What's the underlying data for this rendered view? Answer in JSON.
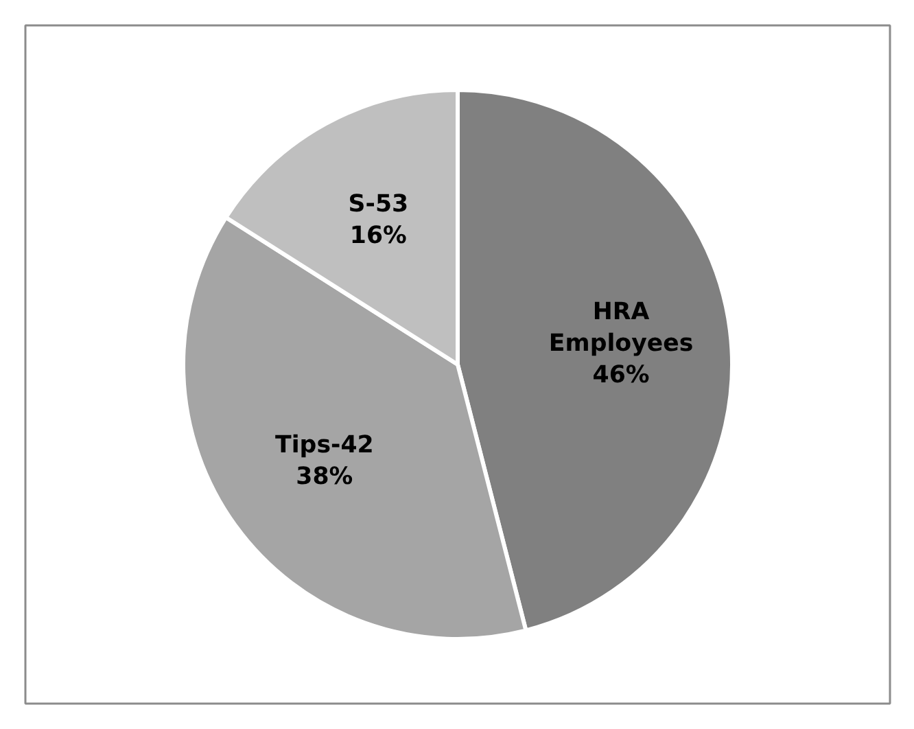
{
  "chart_data": {
    "type": "pie",
    "categories": [
      "HRA Employees",
      "Tips-42",
      "S-53"
    ],
    "values": [
      46,
      38,
      16
    ],
    "value_labels": [
      "46%",
      "38%",
      "16%"
    ],
    "colors": [
      "#808080",
      "#a5a5a5",
      "#bfbfbf"
    ]
  }
}
